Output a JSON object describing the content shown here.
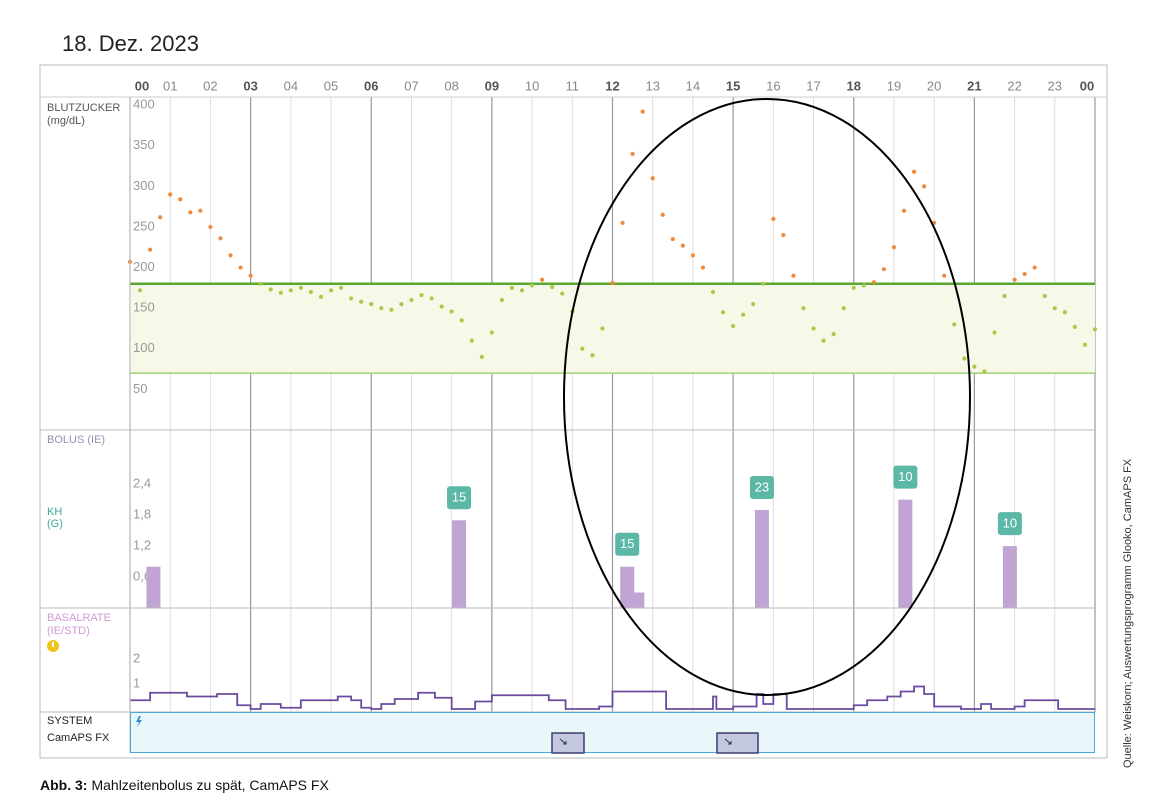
{
  "date": "18. Dez. 2023",
  "chart_data": [
    {
      "type": "scatter",
      "title": "BLUTZUCKER",
      "y_label": "(mg/dL)",
      "xlim": [
        0,
        1440
      ],
      "xticks": [
        {
          "value": 0,
          "label": "00"
        },
        {
          "value": 60,
          "label": "01"
        },
        {
          "value": 120,
          "label": "02"
        },
        {
          "value": 180,
          "label": "03"
        },
        {
          "value": 240,
          "label": "04"
        },
        {
          "value": 300,
          "label": "05"
        },
        {
          "value": 360,
          "label": "06"
        },
        {
          "value": 420,
          "label": "07"
        },
        {
          "value": 480,
          "label": "08"
        },
        {
          "value": 540,
          "label": "09"
        },
        {
          "value": 600,
          "label": "10"
        },
        {
          "value": 660,
          "label": "11"
        },
        {
          "value": 720,
          "label": "12"
        },
        {
          "value": 780,
          "label": "13"
        },
        {
          "value": 840,
          "label": "14"
        },
        {
          "value": 900,
          "label": "15"
        },
        {
          "value": 960,
          "label": "16"
        },
        {
          "value": 1020,
          "label": "17"
        },
        {
          "value": 1080,
          "label": "18"
        },
        {
          "value": 1140,
          "label": "19"
        },
        {
          "value": 1200,
          "label": "20"
        },
        {
          "value": 1260,
          "label": "21"
        },
        {
          "value": 1320,
          "label": "22"
        },
        {
          "value": 1380,
          "label": "23"
        },
        {
          "value": 1440,
          "label": "00"
        }
      ],
      "ylim": [
        0,
        410
      ],
      "yticks": [
        50,
        100,
        150,
        200,
        250,
        300,
        350,
        400
      ],
      "target_range": [
        70,
        180
      ],
      "colors": {
        "high": "#ef8a3c",
        "in_range": "#a9c94c",
        "range_high": "#5aa832",
        "range_low": "#9fd07a",
        "range_fill": "#f7f9e8"
      },
      "x": [
        0,
        15,
        30,
        45,
        60,
        75,
        90,
        105,
        120,
        135,
        150,
        165,
        180,
        195,
        210,
        225,
        240,
        255,
        270,
        285,
        300,
        315,
        330,
        345,
        360,
        375,
        390,
        405,
        420,
        435,
        450,
        465,
        480,
        495,
        510,
        525,
        540,
        555,
        570,
        585,
        600,
        615,
        630,
        645,
        660,
        675,
        690,
        705,
        720,
        735,
        750,
        765,
        780,
        795,
        810,
        825,
        840,
        855,
        870,
        885,
        900,
        915,
        930,
        945,
        960,
        975,
        990,
        1005,
        1020,
        1035,
        1050,
        1065,
        1080,
        1095,
        1110,
        1125,
        1140,
        1155,
        1170,
        1185,
        1200,
        1215,
        1230,
        1245,
        1260,
        1275,
        1290,
        1305,
        1320,
        1335,
        1350,
        1365,
        1380,
        1395,
        1410,
        1425,
        1440
      ],
      "values": [
        207,
        172,
        222,
        262,
        290,
        284,
        268,
        270,
        250,
        236,
        215,
        200,
        190,
        180,
        173,
        169,
        172,
        175,
        170,
        164,
        172,
        175,
        162,
        158,
        155,
        150,
        148,
        155,
        160,
        166,
        162,
        152,
        146,
        135,
        110,
        90,
        120,
        160,
        175,
        172,
        178,
        185,
        176,
        168,
        146,
        100,
        92,
        125,
        181,
        255,
        340,
        392,
        310,
        265,
        235,
        227,
        215,
        200,
        170,
        145,
        128,
        142,
        155,
        180,
        260,
        240,
        190,
        150,
        125,
        110,
        118,
        150,
        175,
        178,
        182,
        198,
        225,
        270,
        318,
        300,
        255,
        190,
        130,
        88,
        78,
        72,
        120,
        165,
        185,
        192,
        200,
        165,
        150,
        145,
        127,
        105,
        124
      ]
    },
    {
      "type": "bar",
      "title": "BOLUS (IE)",
      "carbs_label": "KH",
      "carbs_unit": "(G)",
      "xlim": [
        0,
        1440
      ],
      "ylim": [
        0,
        3.45
      ],
      "yticks": [
        {
          "value": 0.6,
          "label": "0,6"
        },
        {
          "value": 1.2,
          "label": "1,2"
        },
        {
          "value": 1.8,
          "label": "1,8"
        },
        {
          "value": 2.4,
          "label": "2,4"
        }
      ],
      "color": "#c0a5d4",
      "carbs_color": "#5cb8a6",
      "x": [
        35,
        491,
        742,
        757,
        943,
        1157,
        1313
      ],
      "values": [
        0.8,
        1.7,
        0.8,
        0.3,
        1.9,
        2.1,
        1.2
      ],
      "carbs": [
        null,
        15,
        15,
        null,
        23,
        10,
        10
      ]
    },
    {
      "type": "step",
      "title": "BASALRATE",
      "y_label": "(IE/STD)",
      "xlim": [
        0,
        1440
      ],
      "ylim": [
        0,
        4
      ],
      "yticks": [
        1,
        2
      ],
      "color": "#6b4aa0",
      "x": [
        0,
        30,
        85,
        130,
        160,
        180,
        195,
        225,
        255,
        310,
        330,
        345,
        360,
        375,
        395,
        430,
        455,
        480,
        515,
        540,
        625,
        650,
        700,
        720,
        800,
        870,
        875,
        900,
        935,
        945,
        960,
        980,
        1080,
        1100,
        1130,
        1150,
        1170,
        1185,
        1200,
        1240,
        1270,
        1285,
        1320,
        1335,
        1385
      ],
      "values": [
        0.35,
        0.65,
        0.5,
        0.6,
        0.15,
        0,
        0.2,
        0.05,
        0.35,
        0.5,
        0.35,
        0.05,
        0,
        0.2,
        0.4,
        0.65,
        0.45,
        0,
        0.3,
        0.55,
        0.35,
        0,
        0.1,
        0.7,
        0,
        0.5,
        0,
        0.1,
        0.6,
        0.2,
        0.6,
        0,
        0.15,
        0.35,
        0.5,
        0.7,
        0.9,
        0.6,
        0.1,
        0,
        0.2,
        0,
        0.1,
        0.35,
        0
      ]
    }
  ],
  "system": {
    "title": "SYSTEM",
    "subtitle": "CamAPS FX"
  },
  "caption": {
    "label": "Abb. 3:",
    "text": "Mahlzeitenbolus zu spät, CamAPS FX"
  },
  "source": "Quelle: Weiskorn; Auswertungsprogramm Glooko, CamAPS FX"
}
